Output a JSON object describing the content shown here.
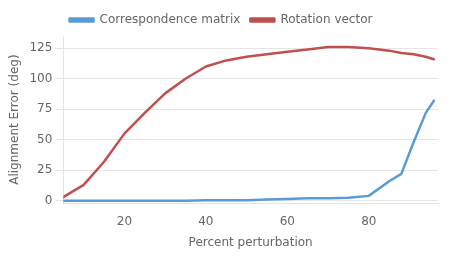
{
  "chart_data": {
    "type": "line",
    "x_label": "Percent perturbation",
    "y_label": "Alignment Error (deg)",
    "x": [
      5,
      10,
      15,
      20,
      25,
      30,
      35,
      40,
      45,
      50,
      55,
      60,
      65,
      70,
      75,
      80,
      85,
      88,
      91,
      94,
      96
    ],
    "series": [
      {
        "name": "Correspondence matrix",
        "color": "#5b9bd5",
        "values": [
          0,
          0,
          0,
          0,
          0,
          0,
          0,
          0.5,
          0.5,
          0.5,
          1,
          1.5,
          2,
          2,
          2.5,
          4,
          16,
          22,
          48,
          72,
          82
        ]
      },
      {
        "name": "Rotation vector",
        "color": "#c0504d",
        "values": [
          3,
          13,
          32,
          55,
          72,
          88,
          100,
          110,
          115,
          118,
          120,
          122,
          124,
          126,
          126,
          125,
          123,
          121,
          120,
          118,
          116
        ]
      }
    ],
    "xlim": [
      5,
      97
    ],
    "ylim": [
      -2,
      135
    ],
    "xticks": [
      20,
      40,
      60,
      80
    ],
    "yticks": [
      0,
      25,
      50,
      75,
      100,
      125
    ],
    "grid": "y",
    "legend": "top"
  }
}
